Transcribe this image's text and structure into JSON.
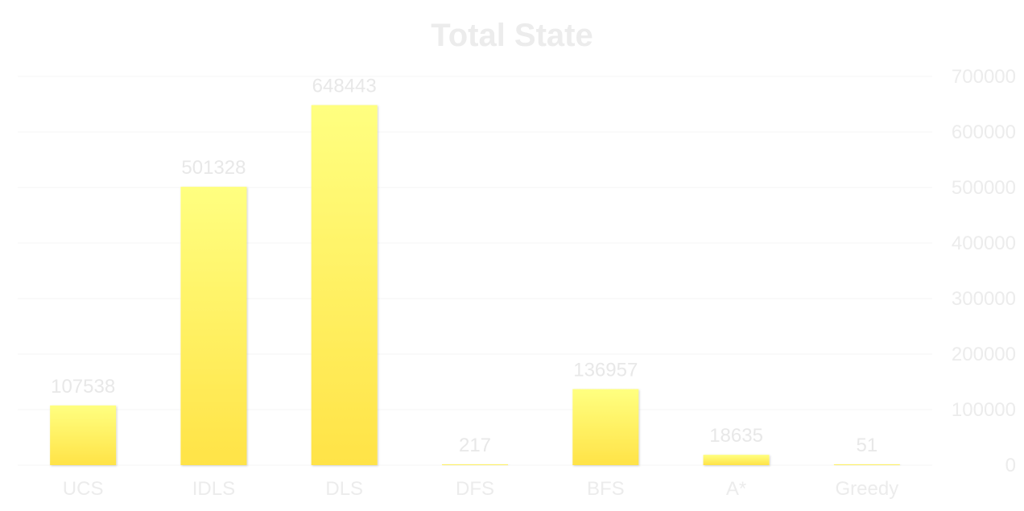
{
  "chart_data": {
    "type": "bar",
    "title": "Total State",
    "xlabel": "",
    "ylabel": "",
    "categories": [
      "UCS",
      "IDLS",
      "DLS",
      "DFS",
      "BFS",
      "A*",
      "Greedy"
    ],
    "values": [
      107538,
      501328,
      648443,
      217,
      136957,
      18635,
      51
    ],
    "ylim": [
      0,
      700000
    ],
    "yticks": [
      0,
      100000,
      200000,
      300000,
      400000,
      500000,
      600000,
      700000
    ],
    "y_axis_side": "right",
    "grid": true,
    "legend": "none",
    "colors": {
      "bar_top": "#ffff80",
      "bar_bottom": "#ffe347",
      "text": "#ececec",
      "grid": "#f6f6f6"
    }
  }
}
